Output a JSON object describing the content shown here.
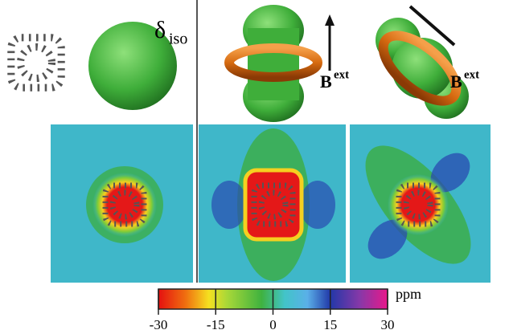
{
  "labels": {
    "delta_symbol": "δ",
    "delta_subscript": "iso",
    "field_middle": {
      "base": "B",
      "superscript": "ext"
    },
    "field_right": {
      "base": "B",
      "superscript": "ext"
    }
  },
  "colorbar": {
    "range": [
      -30,
      30
    ],
    "ticks": [
      -30,
      -15,
      0,
      15,
      30
    ],
    "unit": "ppm"
  }
}
